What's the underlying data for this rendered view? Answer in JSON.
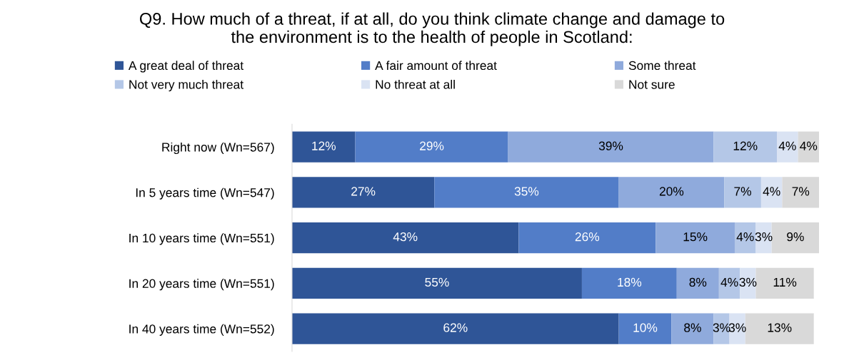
{
  "chart_data": {
    "type": "bar",
    "orientation": "horizontal",
    "stacked": true,
    "title": "Q9. How much of a threat, if at all, do you think climate change and damage to\nthe environment is to the health of people in Scotland:",
    "categories": [
      "Right now (Wn=567)",
      "In 5 years time (Wn=547)",
      "In 10 years time (Wn=551)",
      "In 20 years time (Wn=551)",
      "In 40 years time (Wn=552)"
    ],
    "series": [
      {
        "name": "A great deal of threat",
        "color": "#2f5597",
        "values": [
          12,
          27,
          43,
          55,
          62
        ],
        "value_labels": [
          "12%",
          "27%",
          "43%",
          "55%",
          "62%"
        ]
      },
      {
        "name": "A fair amount of threat",
        "color": "#527dc8",
        "values": [
          29,
          35,
          26,
          18,
          10
        ],
        "value_labels": [
          "29%",
          "35%",
          "26%",
          "18%",
          "10%"
        ]
      },
      {
        "name": "Some threat",
        "color": "#8faadc",
        "values": [
          39,
          20,
          15,
          8,
          8
        ],
        "value_labels": [
          "39%",
          "20%",
          "15%",
          "8%",
          "8%"
        ]
      },
      {
        "name": "Not very much threat",
        "color": "#b4c7e7",
        "values": [
          12,
          7,
          4,
          4,
          3
        ],
        "value_labels": [
          "12%",
          "7%",
          "4%",
          "4%",
          "3%"
        ]
      },
      {
        "name": "No threat at all",
        "color": "#dae3f3",
        "values": [
          4,
          4,
          3,
          3,
          3
        ],
        "value_labels": [
          "4%",
          "4%",
          "3%",
          "3%",
          "3%"
        ]
      },
      {
        "name": "Not sure",
        "color": "#d9d9d9",
        "values": [
          4,
          7,
          9,
          11,
          13
        ],
        "value_labels": [
          "4%",
          "7%",
          "9%",
          "11%",
          "13%"
        ]
      }
    ],
    "legend": "top",
    "tick_labels": "y",
    "grid": false
  }
}
